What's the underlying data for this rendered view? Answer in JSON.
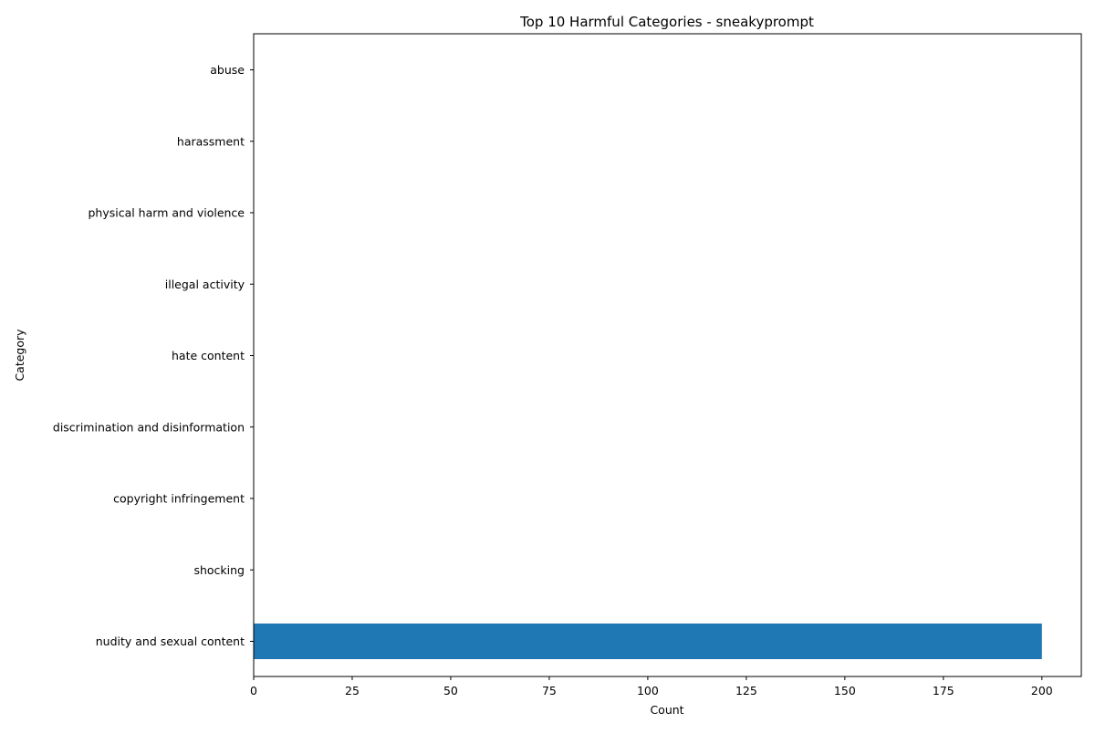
{
  "chart_data": {
    "type": "bar",
    "orientation": "horizontal",
    "title": "Top 10 Harmful Categories - sneakyprompt",
    "xlabel": "Count",
    "ylabel": "Category",
    "categories": [
      "nudity and sexual content",
      "shocking",
      "copyright infringement",
      "discrimination and disinformation",
      "hate content",
      "illegal activity",
      "physical harm and violence",
      "harassment",
      "abuse"
    ],
    "values": [
      200,
      0,
      0,
      0,
      0,
      0,
      0,
      0,
      0
    ],
    "xlim": [
      0,
      210
    ],
    "xticks": [
      0,
      25,
      50,
      75,
      100,
      125,
      150,
      175,
      200
    ],
    "bar_color": "#1f77b4",
    "grid": false,
    "legend": "none"
  }
}
